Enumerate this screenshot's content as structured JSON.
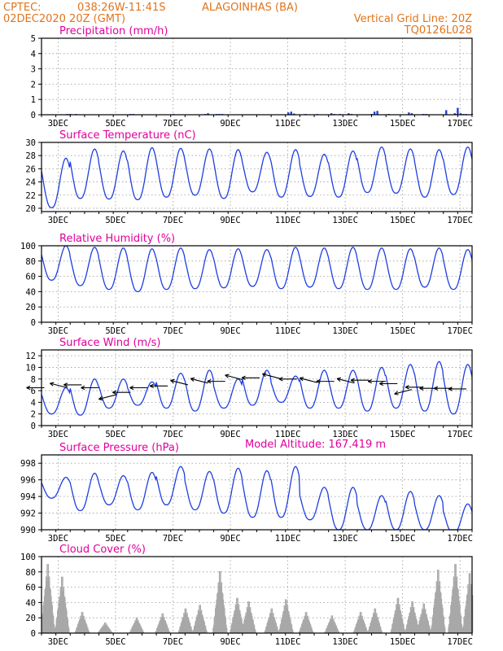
{
  "header": {
    "source": "CPTEC:",
    "coords": "038:26W-11:41S",
    "location": "ALAGOINHAS (BA)",
    "run": "02DEC2020 20Z (GMT)",
    "grid_line": "Vertical Grid Line: 20Z",
    "code": "TQ0126L028"
  },
  "x_labels": [
    "3DEC",
    "5DEC",
    "7DEC",
    "9DEC",
    "11DEC",
    "13DEC",
    "15DEC",
    "17DEC"
  ],
  "model_altitude": "Model Altitude: 167.419 m",
  "chart_data": [
    {
      "type": "bar",
      "title": "Precipitation (mm/h)",
      "ylim": [
        0,
        5
      ],
      "yticks": [
        0,
        1,
        2,
        3,
        4,
        5
      ],
      "xlim": [
        0,
        15
      ],
      "series": [
        {
          "x": [
            0.9,
            1.0,
            1.2,
            2.1,
            3.1,
            3.2,
            4.6,
            5.7,
            5.8,
            6.1,
            6.2,
            6.3,
            8.6,
            8.7,
            8.8,
            9.2,
            9.6,
            10.1,
            10.2,
            10.4,
            10.7,
            10.8,
            11.5,
            11.6,
            11.7,
            12.1,
            12.8,
            12.9,
            13.3,
            13.4,
            14.1,
            14.4,
            14.5,
            14.6,
            14.7,
            14.8,
            15.0
          ],
          "values": [
            0.05,
            0.05,
            0.05,
            0.02,
            0.05,
            0.05,
            0.05,
            0.05,
            0.1,
            0.05,
            0.05,
            0.05,
            0.15,
            0.2,
            0.08,
            0.05,
            0.05,
            0.1,
            0.05,
            0.05,
            0.1,
            0.05,
            0.05,
            0.2,
            0.25,
            0.05,
            0.15,
            0.1,
            0.05,
            0.05,
            0.3,
            0.1,
            0.45,
            0.1,
            0.05,
            0.05,
            0.05
          ]
        }
      ]
    },
    {
      "type": "line",
      "title": "Surface Temperature (nC)",
      "ylim": [
        19.5,
        30
      ],
      "yticks": [
        20,
        22,
        24,
        26,
        28,
        30
      ],
      "xlim": [
        0,
        15
      ],
      "series": [
        {
          "maxima": [
            27.6,
            29,
            28.7,
            29.2,
            29.1,
            29,
            28.9,
            28.5,
            28.9,
            28.2,
            28.7,
            29.3,
            29,
            28.9,
            29.3
          ],
          "minima": [
            20.1,
            21.5,
            21.4,
            21.3,
            21.7,
            22,
            21.5,
            22.5,
            21.7,
            21.8,
            21.7,
            22.4,
            22.3,
            21.7,
            22.1
          ]
        }
      ]
    },
    {
      "type": "line",
      "title": "Relative Humidity (%)",
      "ylim": [
        0,
        100
      ],
      "yticks": [
        0,
        20,
        40,
        60,
        80,
        100
      ],
      "xlim": [
        0,
        15
      ],
      "series": [
        {
          "maxima": [
            100,
            98,
            97,
            96,
            97,
            95,
            96,
            95,
            98,
            97,
            98,
            97,
            96,
            97,
            95
          ],
          "minima": [
            55,
            48,
            43,
            40,
            43,
            44,
            45,
            47,
            44,
            46,
            44,
            43,
            43,
            46,
            43
          ]
        }
      ]
    },
    {
      "type": "line",
      "title": "Surface Wind (m/s)",
      "ylim": [
        0,
        13
      ],
      "yticks": [
        0,
        2,
        4,
        6,
        8,
        10,
        12
      ],
      "xlim": [
        0,
        15
      ],
      "series": [
        {
          "maxima": [
            6.5,
            8,
            8,
            7.5,
            9,
            9.5,
            8,
            9.5,
            8.5,
            9.5,
            9.5,
            10,
            10.5,
            11,
            10.5
          ],
          "minima": [
            2,
            1.8,
            3,
            3.5,
            3,
            2.5,
            3,
            3.5,
            4,
            3,
            3,
            2.5,
            3,
            2.5,
            2
          ]
        }
      ],
      "vectors": [
        {
          "x": 0.1,
          "y": 6.5,
          "dir": "W"
        },
        {
          "x": 0.9,
          "y": 6.5,
          "dir": "NW"
        },
        {
          "x": 1.4,
          "y": 7,
          "dir": "W"
        },
        {
          "x": 2.0,
          "y": 6.5,
          "dir": "W"
        },
        {
          "x": 2.6,
          "y": 5.3,
          "dir": "SW"
        },
        {
          "x": 3.1,
          "y": 5.7,
          "dir": "W"
        },
        {
          "x": 3.7,
          "y": 6.5,
          "dir": "W"
        },
        {
          "x": 4.4,
          "y": 6.8,
          "dir": "W"
        },
        {
          "x": 5.1,
          "y": 7,
          "dir": "NW"
        },
        {
          "x": 5.8,
          "y": 7.3,
          "dir": "NW"
        },
        {
          "x": 6.4,
          "y": 7.6,
          "dir": "W"
        },
        {
          "x": 7.0,
          "y": 7.9,
          "dir": "NW"
        },
        {
          "x": 7.6,
          "y": 8.2,
          "dir": "W"
        },
        {
          "x": 8.3,
          "y": 8.1,
          "dir": "NW"
        },
        {
          "x": 8.9,
          "y": 8,
          "dir": "W"
        },
        {
          "x": 9.6,
          "y": 7.4,
          "dir": "NW"
        },
        {
          "x": 10.2,
          "y": 7.6,
          "dir": "W"
        },
        {
          "x": 10.9,
          "y": 7.3,
          "dir": "NW"
        },
        {
          "x": 11.4,
          "y": 7.8,
          "dir": "W"
        },
        {
          "x": 12.0,
          "y": 7.6,
          "dir": "W"
        },
        {
          "x": 12.4,
          "y": 7.2,
          "dir": "W"
        },
        {
          "x": 12.9,
          "y": 6.2,
          "dir": "SW"
        },
        {
          "x": 13.3,
          "y": 6.6,
          "dir": "W"
        },
        {
          "x": 13.8,
          "y": 6.4,
          "dir": "W"
        },
        {
          "x": 14.3,
          "y": 6.4,
          "dir": "W"
        },
        {
          "x": 14.8,
          "y": 6.3,
          "dir": "W"
        }
      ]
    },
    {
      "type": "line",
      "title": "Surface Pressure (hPa)",
      "ylim": [
        990,
        999
      ],
      "yticks": [
        990,
        992,
        994,
        996,
        998
      ],
      "xlim": [
        0,
        15
      ],
      "series": [
        {
          "maxima": [
            996.3,
            996.8,
            996.5,
            996.9,
            997.6,
            997,
            997.4,
            997.1,
            997.6,
            995.1,
            995.1,
            994.1,
            994.6,
            994.1,
            993.1
          ],
          "minima": [
            993.8,
            992.3,
            993,
            992.4,
            993,
            992.4,
            992,
            991.5,
            991.5,
            991.2,
            990,
            990,
            990,
            990,
            989.6
          ]
        }
      ]
    },
    {
      "type": "bar",
      "title": "Cloud Cover (%)",
      "ylim": [
        0,
        100
      ],
      "yticks": [
        0,
        20,
        40,
        60,
        80,
        100
      ],
      "xlim": [
        0,
        15
      ],
      "series": [
        {
          "peaks": [
            {
              "x": 0.2,
              "v": 98
            },
            {
              "x": 0.7,
              "v": 80
            },
            {
              "x": 1.4,
              "v": 30
            },
            {
              "x": 2.2,
              "v": 15
            },
            {
              "x": 3.3,
              "v": 22
            },
            {
              "x": 4.2,
              "v": 28
            },
            {
              "x": 5.0,
              "v": 35
            },
            {
              "x": 5.5,
              "v": 40
            },
            {
              "x": 6.2,
              "v": 88
            },
            {
              "x": 6.8,
              "v": 50
            },
            {
              "x": 7.2,
              "v": 45
            },
            {
              "x": 8.0,
              "v": 35
            },
            {
              "x": 8.5,
              "v": 48
            },
            {
              "x": 9.2,
              "v": 30
            },
            {
              "x": 10.1,
              "v": 25
            },
            {
              "x": 11.1,
              "v": 30
            },
            {
              "x": 11.6,
              "v": 35
            },
            {
              "x": 12.4,
              "v": 50
            },
            {
              "x": 12.9,
              "v": 45
            },
            {
              "x": 13.3,
              "v": 42
            },
            {
              "x": 13.8,
              "v": 90
            },
            {
              "x": 14.4,
              "v": 98
            },
            {
              "x": 14.9,
              "v": 85
            }
          ]
        }
      ]
    }
  ]
}
